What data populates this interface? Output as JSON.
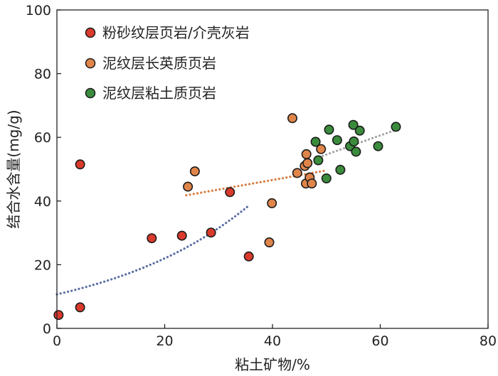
{
  "chart_data": {
    "type": "scatter",
    "title": "",
    "xlabel": "粘土矿物/%",
    "ylabel": "结合水含量(mg/g)",
    "xlim": [
      0,
      80
    ],
    "ylim": [
      0,
      100
    ],
    "xticks": [
      "0",
      "20",
      "40",
      "60",
      "80"
    ],
    "yticks": [
      "0",
      "20",
      "40",
      "60",
      "80",
      "100"
    ],
    "legend_position": "top-left",
    "series": [
      {
        "name": "粉砂纹层页岩/介壳灰岩",
        "color": "#d93a2b",
        "points": [
          {
            "x": 0.3,
            "y": 4.2
          },
          {
            "x": 4.3,
            "y": 6.6
          },
          {
            "x": 4.3,
            "y": 51.5
          },
          {
            "x": 17.6,
            "y": 28.3
          },
          {
            "x": 23.2,
            "y": 29.1
          },
          {
            "x": 28.6,
            "y": 30.1
          },
          {
            "x": 32.1,
            "y": 42.8
          },
          {
            "x": 35.6,
            "y": 22.6
          }
        ]
      },
      {
        "name": "泥纹层长英质页岩",
        "color": "#e0854a",
        "points": [
          {
            "x": 24.3,
            "y": 44.5
          },
          {
            "x": 25.6,
            "y": 49.3
          },
          {
            "x": 39.4,
            "y": 27.0
          },
          {
            "x": 39.9,
            "y": 39.3
          },
          {
            "x": 43.7,
            "y": 66.0
          },
          {
            "x": 44.6,
            "y": 48.8
          },
          {
            "x": 46.0,
            "y": 51.0
          },
          {
            "x": 46.3,
            "y": 54.7
          },
          {
            "x": 46.5,
            "y": 51.9
          },
          {
            "x": 46.2,
            "y": 45.5
          },
          {
            "x": 46.9,
            "y": 47.4
          },
          {
            "x": 47.3,
            "y": 45.5
          },
          {
            "x": 49.0,
            "y": 56.3
          }
        ]
      },
      {
        "name": "泥纹层粘土质页岩",
        "color": "#3a8c3c",
        "points": [
          {
            "x": 48.0,
            "y": 58.6
          },
          {
            "x": 48.5,
            "y": 52.8
          },
          {
            "x": 50.0,
            "y": 47.1
          },
          {
            "x": 50.5,
            "y": 62.4
          },
          {
            "x": 52.0,
            "y": 59.1
          },
          {
            "x": 52.6,
            "y": 49.8
          },
          {
            "x": 54.4,
            "y": 57.2
          },
          {
            "x": 55.0,
            "y": 63.9
          },
          {
            "x": 55.1,
            "y": 58.7
          },
          {
            "x": 55.5,
            "y": 55.5
          },
          {
            "x": 56.2,
            "y": 62.1
          },
          {
            "x": 59.6,
            "y": 57.2
          },
          {
            "x": 62.9,
            "y": 63.3
          }
        ]
      }
    ],
    "trendlines": [
      {
        "name": "粉砂纹层页岩/介壳灰岩",
        "type": "exponential",
        "color": "#5b6ea6",
        "x_range": [
          0,
          35.6
        ],
        "a": 10.7,
        "b": 0.036
      },
      {
        "name": "泥纹层长英质页岩",
        "type": "linear",
        "color": "#d87a3e",
        "x_range": [
          24.0,
          49.6
        ],
        "slope": 0.3,
        "intercept": 34.6
      },
      {
        "name": "泥纹层粘土质页岩",
        "type": "linear",
        "color": "#a6a6a6",
        "x_range": [
          48.0,
          63.0
        ],
        "slope": 0.6,
        "intercept": 24.6
      }
    ]
  }
}
